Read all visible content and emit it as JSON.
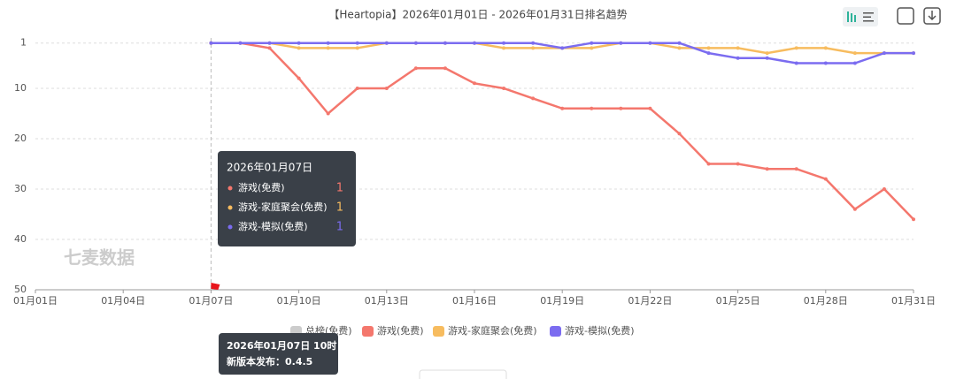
{
  "chart_data": {
    "type": "line",
    "title": "【Heartopia】2026年01月01日 - 2026年01月31日排名趋势",
    "categories": [
      "01月01日",
      null,
      null,
      "01月04日",
      null,
      null,
      "01月07日",
      null,
      null,
      "01月10日",
      null,
      null,
      "01月13日",
      null,
      null,
      "01月16日",
      null,
      null,
      "01月19日",
      null,
      null,
      "01月22日",
      null,
      null,
      "01月25日",
      null,
      null,
      "01月28日",
      null,
      null,
      "01月31日"
    ],
    "ylim": [
      0,
      50
    ],
    "y_inverted": true,
    "yticks": [
      1,
      10,
      20,
      30,
      40,
      50
    ],
    "grid": true,
    "series": [
      {
        "name": "总榜(免费)",
        "color": "#cccccc",
        "values": [
          null,
          null,
          null,
          null,
          null,
          null,
          null,
          null,
          null,
          null,
          null,
          null,
          null,
          null,
          null,
          null,
          null,
          null,
          null,
          null,
          null,
          null,
          null,
          null,
          null,
          null,
          null,
          null,
          null,
          null,
          null
        ]
      },
      {
        "name": "游戏(免费)",
        "color": "#f4776d",
        "values": [
          null,
          null,
          null,
          null,
          null,
          null,
          1,
          1,
          2,
          8,
          15,
          10,
          10,
          6,
          6,
          9,
          10,
          12,
          14,
          14,
          14,
          14,
          19,
          25,
          25,
          26,
          26,
          28,
          34,
          30,
          36
        ]
      },
      {
        "name": "游戏-家庭聚会(免费)",
        "color": "#f7bc5f",
        "values": [
          null,
          null,
          null,
          null,
          null,
          null,
          1,
          1,
          1,
          2,
          2,
          2,
          1,
          1,
          1,
          1,
          2,
          2,
          2,
          2,
          1,
          1,
          2,
          2,
          2,
          3,
          2,
          2,
          3,
          3,
          3
        ]
      },
      {
        "name": "游戏-模拟(免费)",
        "color": "#7b6cf0",
        "values": [
          null,
          null,
          null,
          null,
          null,
          null,
          1,
          1,
          1,
          1,
          1,
          1,
          1,
          1,
          1,
          1,
          1,
          1,
          2,
          1,
          1,
          1,
          1,
          3,
          4,
          4,
          5,
          5,
          5,
          3,
          3
        ]
      }
    ],
    "tooltip": {
      "title": "2026年01月07日",
      "index": 6
    },
    "annotation": {
      "line1": "2026年01月07日 10时",
      "line2": "新版本发布：0.4.5"
    },
    "watermark": "七麦数据"
  }
}
